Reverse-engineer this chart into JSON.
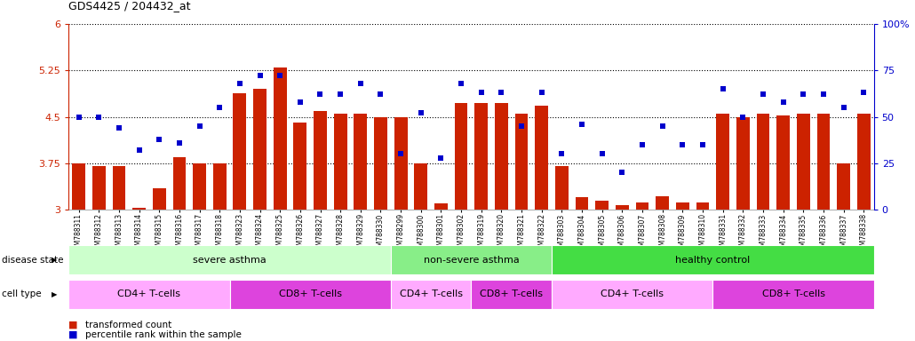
{
  "title": "GDS4425 / 204432_at",
  "samples": [
    "GSM788311",
    "GSM788312",
    "GSM788313",
    "GSM788314",
    "GSM788315",
    "GSM788316",
    "GSM788317",
    "GSM788318",
    "GSM788323",
    "GSM788324",
    "GSM788325",
    "GSM788326",
    "GSM788327",
    "GSM788328",
    "GSM788329",
    "GSM788330",
    "GSM788299",
    "GSM788300",
    "GSM788301",
    "GSM788302",
    "GSM788319",
    "GSM788320",
    "GSM788321",
    "GSM788322",
    "GSM788303",
    "GSM788304",
    "GSM788305",
    "GSM788306",
    "GSM788307",
    "GSM788308",
    "GSM788309",
    "GSM788310",
    "GSM788331",
    "GSM788332",
    "GSM788333",
    "GSM788334",
    "GSM788335",
    "GSM788336",
    "GSM788337",
    "GSM788338"
  ],
  "bar_values": [
    3.75,
    3.7,
    3.7,
    3.03,
    3.35,
    3.85,
    3.75,
    3.75,
    4.88,
    4.95,
    5.3,
    4.4,
    4.6,
    4.55,
    4.55,
    4.5,
    4.5,
    3.75,
    3.1,
    4.72,
    4.72,
    4.72,
    4.55,
    4.68,
    3.7,
    3.2,
    3.15,
    3.08,
    3.12,
    3.22,
    3.12,
    3.12,
    4.55,
    4.5,
    4.55,
    4.52,
    4.55,
    4.55,
    3.75,
    4.55
  ],
  "percentile_values": [
    50,
    50,
    44,
    32,
    38,
    36,
    45,
    55,
    68,
    72,
    72,
    58,
    62,
    62,
    68,
    62,
    30,
    52,
    28,
    68,
    63,
    63,
    45,
    63,
    30,
    46,
    30,
    20,
    35,
    45,
    35,
    35,
    65,
    50,
    62,
    58,
    62,
    62,
    55,
    63
  ],
  "ylim_left": [
    3.0,
    6.0
  ],
  "ylim_right": [
    0,
    100
  ],
  "yticks_left": [
    3.0,
    3.75,
    4.5,
    5.25,
    6.0
  ],
  "yticks_right": [
    0,
    25,
    50,
    75,
    100
  ],
  "ytick_labels_left": [
    "3",
    "3.75",
    "4.5",
    "5.25",
    "6"
  ],
  "ytick_labels_right": [
    "0",
    "25",
    "50",
    "75",
    "100%"
  ],
  "bar_color": "#cc2200",
  "dot_color": "#0000cc",
  "disease_state_groups": [
    {
      "label": "severe asthma",
      "start": 0,
      "end": 15,
      "color": "#ccffcc"
    },
    {
      "label": "non-severe asthma",
      "start": 16,
      "end": 23,
      "color": "#88ee88"
    },
    {
      "label": "healthy control",
      "start": 24,
      "end": 39,
      "color": "#44dd44"
    }
  ],
  "cell_type_groups": [
    {
      "label": "CD4+ T-cells",
      "start": 0,
      "end": 7,
      "color": "#ffaaff"
    },
    {
      "label": "CD8+ T-cells",
      "start": 8,
      "end": 15,
      "color": "#dd44dd"
    },
    {
      "label": "CD4+ T-cells",
      "start": 16,
      "end": 19,
      "color": "#ffaaff"
    },
    {
      "label": "CD8+ T-cells",
      "start": 20,
      "end": 23,
      "color": "#dd44dd"
    },
    {
      "label": "CD4+ T-cells",
      "start": 24,
      "end": 31,
      "color": "#ffaaff"
    },
    {
      "label": "CD8+ T-cells",
      "start": 32,
      "end": 39,
      "color": "#dd44dd"
    }
  ],
  "legend_bar_label": "transformed count",
  "legend_dot_label": "percentile rank within the sample"
}
